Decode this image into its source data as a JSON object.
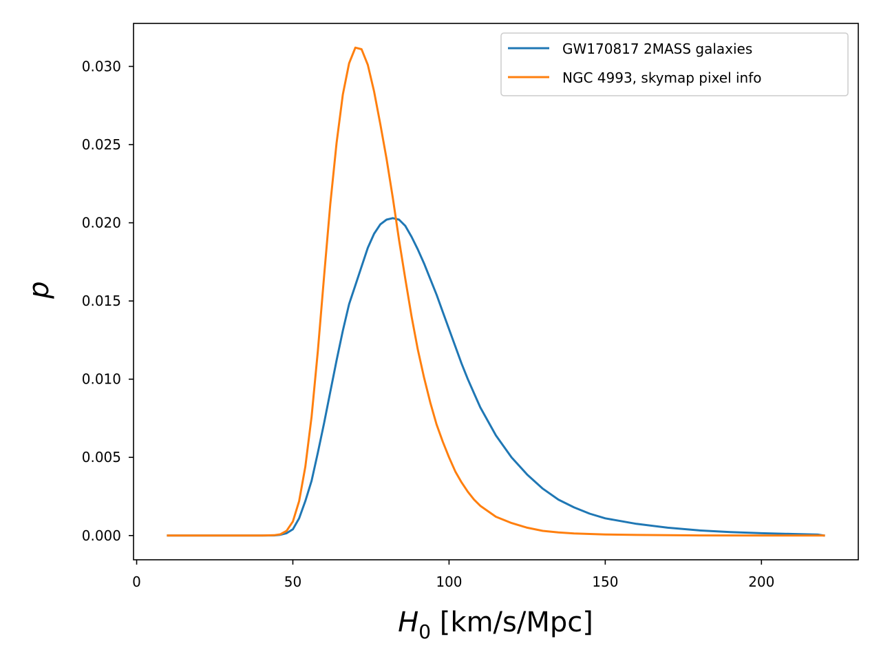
{
  "chart_data": {
    "type": "line",
    "xlabel_main": "H",
    "xlabel_sub": "0",
    "xlabel_rest": " [km/s/Mpc]",
    "ylabel": "p",
    "xlim": [
      -1,
      231
    ],
    "ylim": [
      -0.00155,
      0.03275
    ],
    "xticks": [
      0,
      50,
      100,
      150,
      200
    ],
    "xtick_labels": [
      "0",
      "50",
      "100",
      "150",
      "200"
    ],
    "yticks": [
      0.0,
      0.005,
      0.01,
      0.015,
      0.02,
      0.025,
      0.03
    ],
    "ytick_labels": [
      "0.000",
      "0.005",
      "0.010",
      "0.015",
      "0.020",
      "0.025",
      "0.030"
    ],
    "grid": false,
    "legend_position": "top-right",
    "series": [
      {
        "name": "GW170817 2MASS galaxies",
        "color": "#1f77b4",
        "x": [
          10,
          20,
          30,
          40,
          44,
          46,
          48,
          50,
          52,
          54,
          56,
          58,
          60,
          62,
          64,
          66,
          68,
          70,
          72,
          74,
          76,
          78,
          80,
          82,
          84,
          86,
          88,
          90,
          92,
          94,
          96,
          98,
          100,
          102,
          104,
          106,
          108,
          110,
          115,
          120,
          125,
          130,
          135,
          140,
          145,
          150,
          160,
          170,
          180,
          190,
          200,
          210,
          218,
          220
        ],
        "y": [
          0.0,
          0.0,
          0.0,
          0.0,
          1e-05,
          5e-05,
          0.00015,
          0.0004,
          0.0011,
          0.0022,
          0.0035,
          0.0053,
          0.0072,
          0.0092,
          0.0112,
          0.0131,
          0.0148,
          0.016,
          0.0172,
          0.0184,
          0.0193,
          0.0199,
          0.0202,
          0.0203,
          0.0202,
          0.0198,
          0.0191,
          0.0183,
          0.0174,
          0.0164,
          0.0154,
          0.0143,
          0.0132,
          0.0121,
          0.011,
          0.01,
          0.0091,
          0.0082,
          0.0064,
          0.005,
          0.0039,
          0.003,
          0.0023,
          0.0018,
          0.0014,
          0.0011,
          0.00075,
          0.0005,
          0.00033,
          0.00022,
          0.00015,
          0.0001,
          6e-05,
          0.0
        ]
      },
      {
        "name": "NGC 4993, skymap pixel info",
        "color": "#ff7f0e",
        "x": [
          10,
          20,
          30,
          40,
          44,
          46,
          48,
          50,
          52,
          54,
          56,
          58,
          60,
          62,
          64,
          66,
          68,
          70,
          72,
          74,
          76,
          78,
          80,
          82,
          84,
          86,
          88,
          90,
          92,
          94,
          96,
          98,
          100,
          102,
          104,
          106,
          108,
          110,
          115,
          120,
          125,
          130,
          135,
          140,
          150,
          160,
          170,
          180,
          200,
          220
        ],
        "y": [
          0.0,
          0.0,
          0.0,
          0.0,
          2e-05,
          8e-05,
          0.0003,
          0.0009,
          0.0022,
          0.0044,
          0.0076,
          0.0118,
          0.0166,
          0.0212,
          0.0251,
          0.0282,
          0.0302,
          0.0312,
          0.0311,
          0.0301,
          0.0284,
          0.0263,
          0.0241,
          0.0216,
          0.0189,
          0.0164,
          0.014,
          0.0119,
          0.0101,
          0.0085,
          0.0071,
          0.006,
          0.005,
          0.0041,
          0.0034,
          0.0028,
          0.0023,
          0.0019,
          0.0012,
          0.0008,
          0.0005,
          0.0003,
          0.0002,
          0.00013,
          7e-05,
          4e-05,
          2e-05,
          1e-05,
          0.0,
          0.0
        ]
      }
    ]
  }
}
